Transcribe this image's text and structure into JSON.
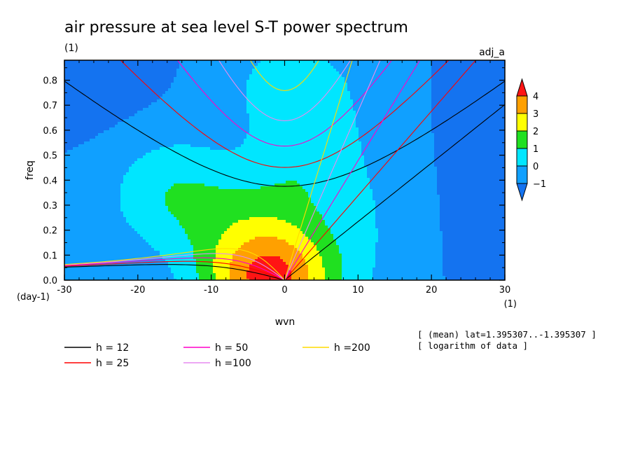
{
  "chart_data": {
    "type": "heatmap",
    "title": "air pressure at sea level S-T power spectrum",
    "units_label": "(1)",
    "top_right_label": "adj_a",
    "xlabel": "wvn",
    "ylabel": "freq",
    "x_units": "(1)",
    "y_units": "(day-1)",
    "xlim": [
      -30,
      30
    ],
    "ylim": [
      0,
      0.88
    ],
    "x_ticks": [
      -30,
      -20,
      -10,
      0,
      10,
      20,
      30
    ],
    "y_ticks": [
      0.0,
      0.1,
      0.2,
      0.3,
      0.4,
      0.5,
      0.6,
      0.7,
      0.8
    ],
    "colorbar": {
      "levels": [
        -1,
        0,
        1,
        2,
        3,
        4
      ],
      "colors": [
        "#1473f0",
        "#10a0ff",
        "#00e6ff",
        "#20e020",
        "#ffff00",
        "#ffa000",
        "#ff1414"
      ]
    },
    "field": {
      "description_values": "log10 power, approximate",
      "peak": {
        "wvn": -2,
        "freq": 0.0,
        "value": 4.2
      }
    },
    "dispersion_curves": [
      {
        "name": "h = 12",
        "color": "#000000",
        "equivalent_depth": 12
      },
      {
        "name": "h = 25",
        "color": "#ff0000",
        "equivalent_depth": 25
      },
      {
        "name": "h = 50",
        "color": "#ff00c8",
        "equivalent_depth": 50
      },
      {
        "name": "h =100",
        "color": "#e68cf0",
        "equivalent_depth": 100
      },
      {
        "name": "h =200",
        "color": "#ffdc00",
        "equivalent_depth": 200
      }
    ],
    "notes": [
      "[ (mean) lat=1.395307..-1.395307 ]",
      "[ logarithm of data ]"
    ]
  }
}
